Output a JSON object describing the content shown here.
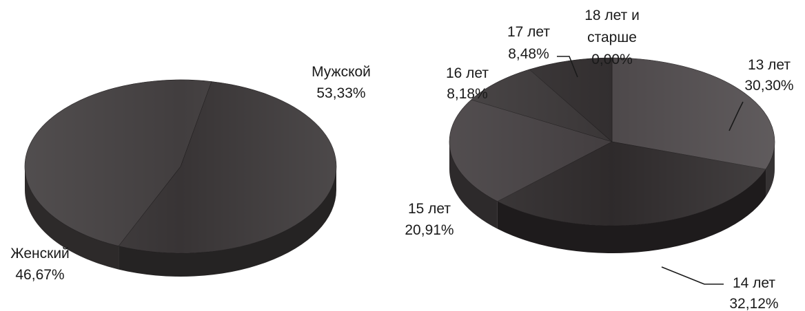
{
  "chart_data": [
    {
      "type": "pie",
      "style": "3d",
      "categories": [
        "Мужской",
        "Женский"
      ],
      "values": [
        53.33,
        46.67
      ],
      "labels": [
        "Мужской",
        "Женский"
      ],
      "value_labels": [
        "53,33%",
        "46,67%"
      ],
      "colors": [
        "#343031",
        "#3e3a3b"
      ]
    },
    {
      "type": "pie",
      "style": "3d",
      "categories": [
        "13 лет",
        "14 лет",
        "15 лет",
        "16 лет",
        "17 лет",
        "18 лет и старше"
      ],
      "values": [
        30.3,
        32.12,
        20.91,
        8.18,
        8.48,
        0.0
      ],
      "label_lines": [
        [
          "13 лет"
        ],
        [
          "14 лет"
        ],
        [
          "15 лет"
        ],
        [
          "16 лет"
        ],
        [
          "17 лет"
        ],
        [
          "18 лет и",
          "старше"
        ]
      ],
      "value_labels": [
        "30,30%",
        "32,12%",
        "20,91%",
        "8,18%",
        "8,48%",
        "0,00%"
      ],
      "colors": [
        "#4a4547",
        "#2a2627",
        "#3f3a3c",
        "#363233",
        "#2e2a2b",
        "#555052"
      ]
    }
  ]
}
